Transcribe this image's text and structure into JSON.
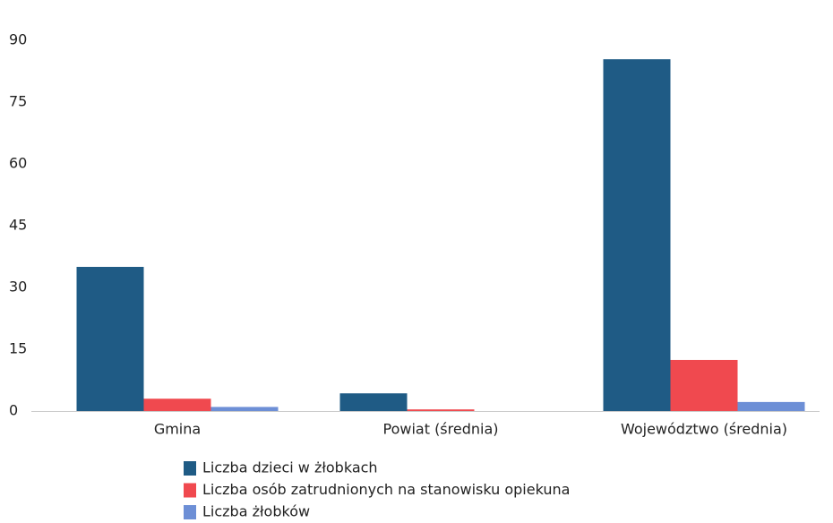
{
  "chart_data": {
    "type": "bar",
    "categories": [
      "Gmina",
      "Powiat (średnia)",
      "Województwo (średnia)"
    ],
    "series": [
      {
        "name": "Liczba dzieci w żłobkach",
        "color": "#1f5b85",
        "values": [
          35,
          4.3,
          85.4
        ]
      },
      {
        "name": "Liczba osób zatrudnionych na stanowisku opiekuna",
        "color": "#f0494f",
        "values": [
          3,
          0.4,
          12.4
        ]
      },
      {
        "name": "Liczba żłobków",
        "color": "#6d8fd6",
        "values": [
          1,
          0,
          2.2
        ]
      }
    ],
    "ylim": [
      0,
      90
    ],
    "yticks": [
      0,
      15,
      30,
      45,
      60,
      75,
      90
    ],
    "grid": false,
    "legend": "bottom"
  }
}
